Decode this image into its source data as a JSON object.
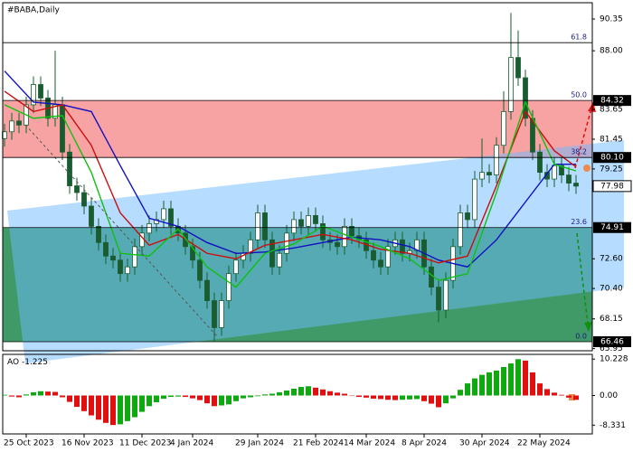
{
  "chart_data": {
    "type": "candlestick",
    "title": "#BABA,Daily",
    "categories": [
      null,
      null,
      null,
      "25 Oct 2023",
      null,
      null,
      null,
      null,
      null,
      null,
      null,
      "16 Nov 2023",
      null,
      null,
      null,
      null,
      null,
      null,
      null,
      "11 Dec 2023",
      null,
      null,
      null,
      null,
      null,
      null,
      "4 Jan 2024",
      null,
      null,
      null,
      null,
      null,
      null,
      null,
      null,
      "29 Jan 2024",
      null,
      null,
      null,
      null,
      null,
      null,
      null,
      "21 Feb 2024",
      null,
      null,
      null,
      null,
      null,
      null,
      "14 Mar 2024",
      null,
      null,
      null,
      null,
      null,
      null,
      null,
      "8 Apr 2024",
      null,
      null,
      null,
      null,
      null,
      null,
      null,
      "30 Apr 2024",
      null,
      null,
      null,
      null,
      null,
      null,
      null,
      "22 May 2024",
      null,
      null,
      null,
      null,
      null
    ],
    "open": [
      81.5,
      82.0,
      82.8,
      82.5,
      84.0,
      85.5,
      84.5,
      83.0,
      84.0,
      80.5,
      78.0,
      77.5,
      76.5,
      75.0,
      73.8,
      72.8,
      72.5,
      71.5,
      72.0,
      73.5,
      74.5,
      75.2,
      75.5,
      76.3,
      75.0,
      74.5,
      73.5,
      72.5,
      71.0,
      69.5,
      67.5,
      69.5,
      71.5,
      72.5,
      73.0,
      74.0,
      76.0,
      74.0,
      72.0,
      73.0,
      74.5,
      75.5,
      75.0,
      75.8,
      75.2,
      74.0,
      73.8,
      73.5,
      75.0,
      74.3,
      74.0,
      73.2,
      72.5,
      72.0,
      73.5,
      74.0,
      73.0,
      73.2,
      74.0,
      72.0,
      70.5,
      68.8,
      71.0,
      73.5,
      76.0,
      75.5,
      78.5,
      79.0,
      78.8,
      81.0,
      83.5,
      87.5,
      86.0,
      83.0,
      80.5,
      79.0,
      78.5,
      79.5,
      78.8,
      78.2
    ],
    "high": [
      82.6,
      83.4,
      83.4,
      84.6,
      86.1,
      86.1,
      85.1,
      88.0,
      84.6,
      81.1,
      78.6,
      78.1,
      77.1,
      75.6,
      74.4,
      73.4,
      73.1,
      72.6,
      74.1,
      75.1,
      75.8,
      76.1,
      76.9,
      76.9,
      75.6,
      75.1,
      74.1,
      73.1,
      71.6,
      70.1,
      70.1,
      72.1,
      73.1,
      73.6,
      74.6,
      76.6,
      76.6,
      74.6,
      73.6,
      75.1,
      76.1,
      76.1,
      76.4,
      76.4,
      75.8,
      74.6,
      74.4,
      75.6,
      75.6,
      74.9,
      74.6,
      73.8,
      73.1,
      74.1,
      74.6,
      74.6,
      73.8,
      74.6,
      74.6,
      72.6,
      71.1,
      71.6,
      74.1,
      76.6,
      76.6,
      79.1,
      81.5,
      79.6,
      81.6,
      85.0,
      90.8,
      89.5,
      86.6,
      83.6,
      81.1,
      79.6,
      80.1,
      80.1,
      79.4,
      78.8
    ],
    "low": [
      80.9,
      81.4,
      81.9,
      81.9,
      83.4,
      83.9,
      82.4,
      82.4,
      79.9,
      77.4,
      76.9,
      75.9,
      74.4,
      73.2,
      72.2,
      71.9,
      70.9,
      70.9,
      71.4,
      72.9,
      73.9,
      74.6,
      74.9,
      74.4,
      73.9,
      72.9,
      71.9,
      70.4,
      68.9,
      66.5,
      66.9,
      68.9,
      70.9,
      71.9,
      72.4,
      73.4,
      73.4,
      71.4,
      71.4,
      72.4,
      73.9,
      74.4,
      74.4,
      74.6,
      73.4,
      73.2,
      72.9,
      72.9,
      73.7,
      73.4,
      72.6,
      71.9,
      71.4,
      71.4,
      72.9,
      72.4,
      72.4,
      72.6,
      71.4,
      69.9,
      67.9,
      68.2,
      70.4,
      72.9,
      74.9,
      74.9,
      77.9,
      78.2,
      78.2,
      80.4,
      82.9,
      85.4,
      82.4,
      79.9,
      78.4,
      77.9,
      77.9,
      78.2,
      77.6,
      77.4
    ],
    "close": [
      82.0,
      82.8,
      82.5,
      84.0,
      85.5,
      84.5,
      83.0,
      84.0,
      80.5,
      78.0,
      77.5,
      76.5,
      75.0,
      73.8,
      72.8,
      72.5,
      71.5,
      72.0,
      73.5,
      74.5,
      75.2,
      75.5,
      76.3,
      75.0,
      74.5,
      73.5,
      72.5,
      71.0,
      69.5,
      67.5,
      69.5,
      71.5,
      72.5,
      73.0,
      74.0,
      76.0,
      74.0,
      72.0,
      73.0,
      74.5,
      75.5,
      75.0,
      75.8,
      75.2,
      74.0,
      73.8,
      73.5,
      75.0,
      74.3,
      74.0,
      73.2,
      72.5,
      72.0,
      73.5,
      74.0,
      73.0,
      73.2,
      74.0,
      72.0,
      70.5,
      68.8,
      71.0,
      73.5,
      76.0,
      75.5,
      78.5,
      79.0,
      78.8,
      81.0,
      83.5,
      87.5,
      86.0,
      83.0,
      80.5,
      79.0,
      78.5,
      79.5,
      78.8,
      78.2,
      77.98
    ],
    "up_color": "#ffffff",
    "down_color": "#1a5c30",
    "wick_color": "#1a5c30",
    "ylim": [
      65.79,
      91.49
    ],
    "yticks": [
      90.35,
      {
        "value": 88,
        "label": "88.00"
      },
      83.65,
      81.45,
      79.25,
      {
        "value": 72.6,
        "label": "72.60"
      },
      {
        "value": 70.4,
        "label": "70.40"
      },
      68.15,
      65.95
    ],
    "indicators": [
      {
        "color": "#1010c0",
        "x": [
          0,
          4,
          8,
          12,
          16,
          20,
          24,
          28,
          32,
          36,
          40,
          44,
          48,
          52,
          56,
          60,
          64,
          68,
          72,
          76,
          79
        ],
        "values": [
          86.5,
          84.2,
          84.0,
          83.5,
          79.5,
          75.6,
          75.0,
          73.8,
          73.0,
          73.1,
          73.4,
          73.8,
          74.2,
          74.0,
          73.5,
          72.5,
          72.0,
          74.0,
          76.8,
          79.6,
          79.6
        ]
      },
      {
        "color": "#c81010",
        "x": [
          0,
          4,
          8,
          12,
          16,
          20,
          24,
          28,
          32,
          36,
          40,
          44,
          48,
          52,
          56,
          60,
          64,
          68,
          72,
          76,
          79
        ],
        "values": [
          85.0,
          83.5,
          84.0,
          81.0,
          76.0,
          73.6,
          74.4,
          73.0,
          72.6,
          73.6,
          74.0,
          74.4,
          74.0,
          73.3,
          73.0,
          72.3,
          72.8,
          78.0,
          83.5,
          80.6,
          79.4
        ]
      },
      {
        "color": "#10c010",
        "x": [
          0,
          4,
          8,
          12,
          16,
          20,
          24,
          28,
          32,
          36,
          40,
          44,
          48,
          52,
          56,
          60,
          64,
          68,
          72,
          76,
          79
        ],
        "values": [
          84.0,
          83.0,
          83.2,
          79.0,
          73.0,
          72.8,
          74.8,
          72.0,
          70.5,
          73.0,
          73.7,
          75.0,
          74.2,
          73.5,
          72.6,
          71.0,
          71.5,
          77.5,
          84.2,
          79.6,
          79.1
        ]
      }
    ],
    "fib": {
      "ratios": [
        61.8,
        {
          "value": 50,
          "label": "50.0"
        },
        38.2,
        23.6,
        {
          "value": 0,
          "label": "0.0"
        }
      ],
      "prices": [
        88.6,
        84.32,
        80.1,
        74.91,
        66.46
      ],
      "value_labels": [
        null,
        "84.32",
        "80.10",
        "74.91",
        "66.46"
      ],
      "band_fills": [
        "none",
        "#f7a3a3",
        "none",
        "#3f9a68"
      ]
    },
    "oscillator": {
      "name": "AO",
      "values": [
        0.2,
        -0.3,
        -0.5,
        0.3,
        0.9,
        1.2,
        1.1,
        1.0,
        -0.5,
        -1.8,
        -3.2,
        -4.4,
        -5.6,
        -6.8,
        -7.7,
        -8.3,
        -8.1,
        -7.2,
        -6.1,
        -4.6,
        -3.0,
        -1.9,
        -0.9,
        -0.4,
        -0.3,
        -0.4,
        -0.8,
        -1.3,
        -2.2,
        -3.0,
        -2.8,
        -2.5,
        -1.6,
        -0.8,
        -0.5,
        -0.2,
        0.3,
        0.5,
        0.9,
        1.4,
        1.9,
        2.4,
        2.6,
        2.2,
        1.7,
        1.2,
        0.8,
        0.5,
        0.1,
        -0.4,
        -0.6,
        -0.9,
        -1.0,
        -1.2,
        -1.3,
        -1.2,
        -1.1,
        -1.0,
        -1.6,
        -2.3,
        -3.3,
        -2.2,
        -0.8,
        1.6,
        3.4,
        4.8,
        5.8,
        6.5,
        7.0,
        8.0,
        9.0,
        10.2,
        9.8,
        6.5,
        3.4,
        1.8,
        0.8,
        0.2,
        -0.6,
        -1.225
      ],
      "up_color": "#10a810",
      "down_color": "#e01010",
      "ylim": [
        -10.8,
        11.3
      ],
      "yticks": [
        10.228,
        {
          "value": 0,
          "label": "0.00"
        },
        -8.331
      ]
    }
  }
}
